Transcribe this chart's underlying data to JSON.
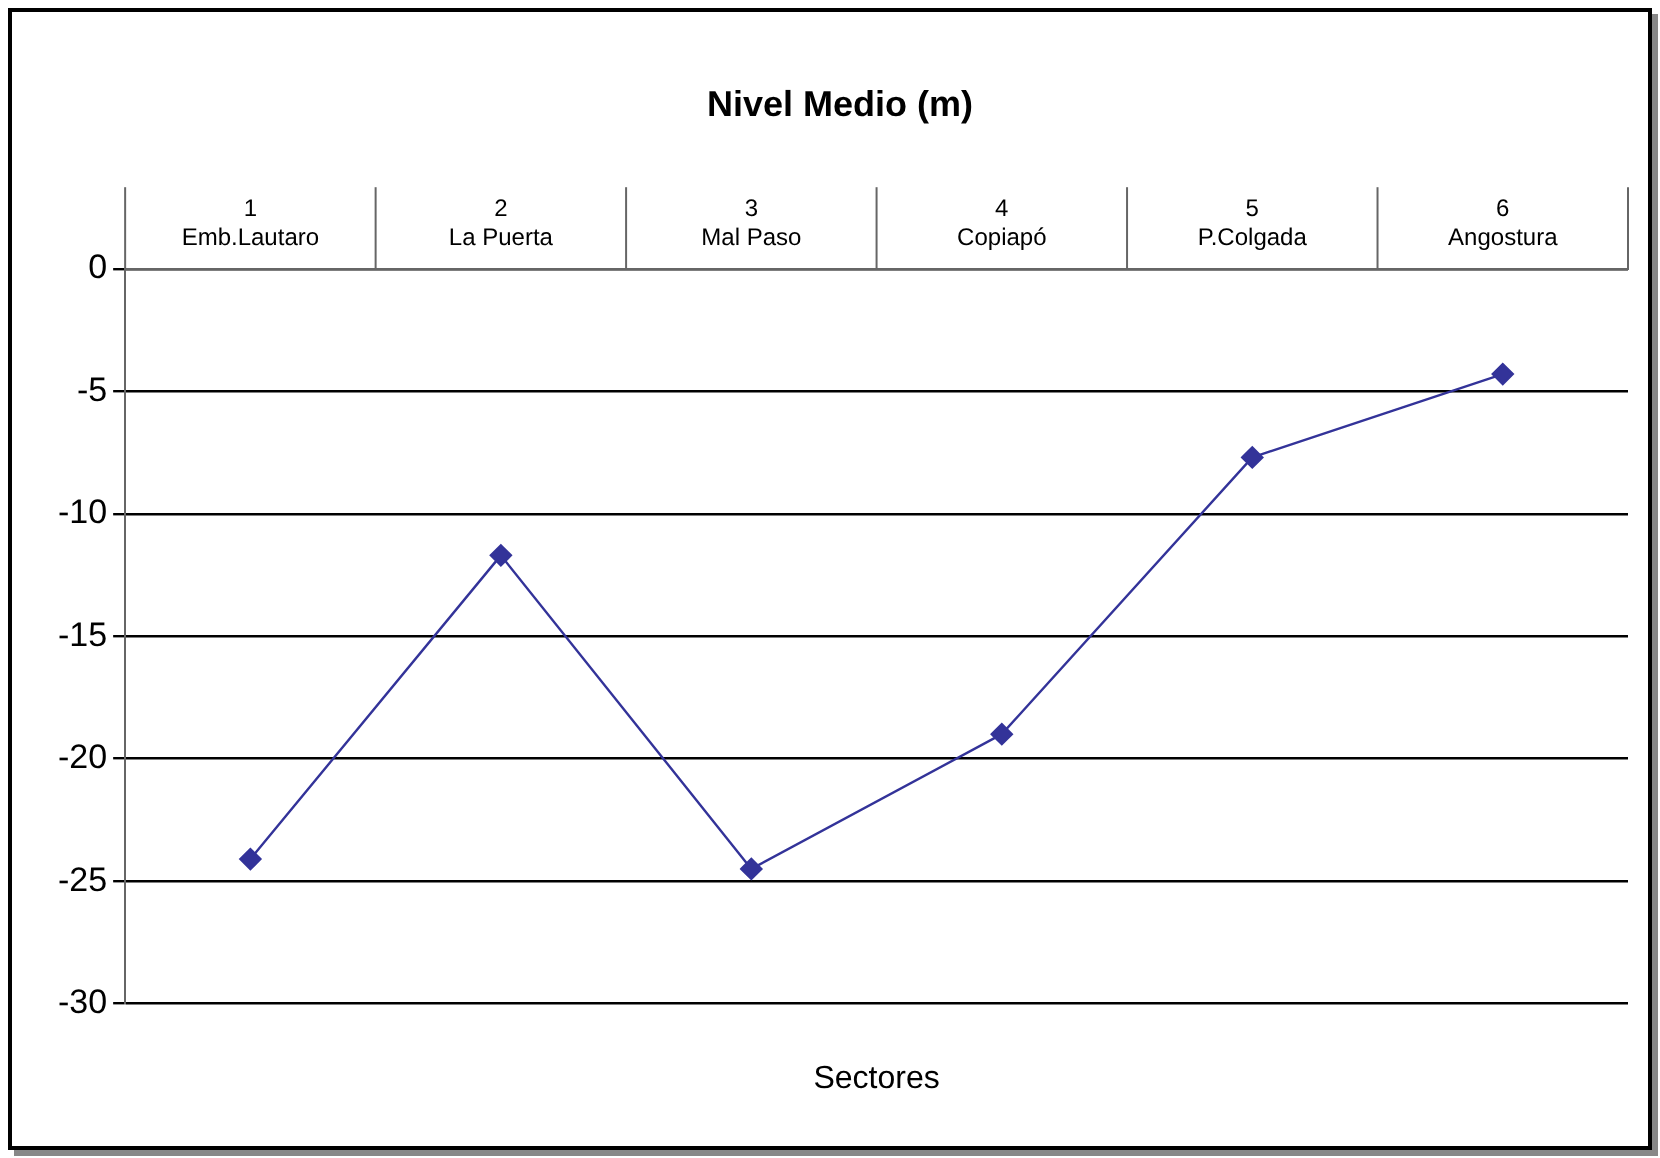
{
  "chart_data": {
    "type": "line",
    "title": "Nivel Medio (m)",
    "xlabel": "Sectores",
    "categories": [
      "1\nEmb.Lautaro",
      "2\nLa Puerta",
      "3\nMal Paso",
      "4\nCopiapó",
      "5\nP.Colgada",
      "6\nAngostura"
    ],
    "values": [
      -24.1,
      -11.7,
      -24.5,
      -19.0,
      -7.7,
      -4.3
    ],
    "color": "#333399",
    "marker": "diamond",
    "line_style": "solid",
    "ylim": [
      -30,
      0
    ],
    "yticks": [
      -30,
      -25,
      -20,
      -15,
      -10,
      -5,
      0
    ],
    "grid": "y",
    "legend": false
  }
}
